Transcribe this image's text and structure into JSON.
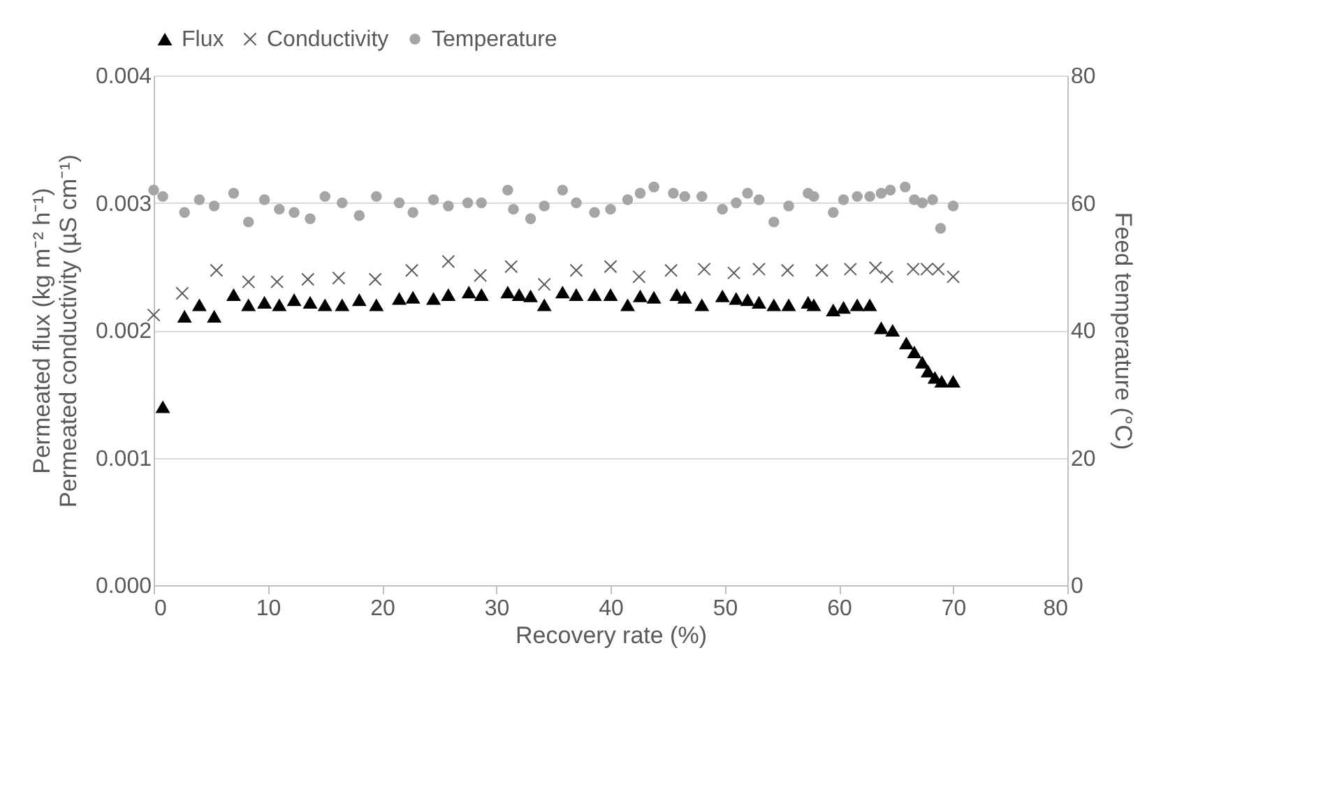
{
  "chart_data": {
    "type": "scatter",
    "xlabel": "Recovery rate (%)",
    "ylabel": "Permeated flux (kg m⁻² h⁻¹)\nPermeated conductivity (µS cm⁻¹)",
    "y2label": "Feed temperature (°C)",
    "xlim": [
      0,
      80
    ],
    "xticks": [
      0,
      10,
      20,
      30,
      40,
      50,
      60,
      70,
      80
    ],
    "ylim": [
      0,
      0.004
    ],
    "yticks": [
      {
        "value": 0,
        "label": "0.000"
      },
      {
        "value": 0.001,
        "label": "0.001"
      },
      {
        "value": 0.002,
        "label": "0.002"
      },
      {
        "value": 0.003,
        "label": "0.003"
      },
      {
        "value": 0.004,
        "label": "0.004"
      }
    ],
    "y2lim": [
      0,
      80
    ],
    "y2ticks": [
      0,
      20,
      40,
      60,
      80
    ],
    "grid": "y",
    "legend": "top",
    "series": [
      {
        "name": "Flux",
        "color": "#000000",
        "marker": "triangle",
        "x": [
          0.8,
          2.7,
          4,
          5.3,
          7,
          8.3,
          9.7,
          11,
          12.3,
          13.7,
          15,
          16.5,
          18,
          19.5,
          21.5,
          22.7,
          24.5,
          25.8,
          27.6,
          28.7,
          31,
          32,
          33,
          34.2,
          35.8,
          37,
          38.6,
          40,
          41.5,
          42.6,
          43.8,
          45.8,
          46.5,
          48,
          49.8,
          51,
          52,
          53,
          54.3,
          55.6,
          57.3,
          57.8,
          59.5,
          60.4,
          61.6,
          62.7,
          63.7,
          64.7,
          65.9,
          66.6,
          67.3,
          67.8,
          68.4,
          69,
          70
        ],
        "values": [
          0.0014,
          0.00211,
          0.0022,
          0.00211,
          0.00228,
          0.0022,
          0.00222,
          0.0022,
          0.00224,
          0.00222,
          0.0022,
          0.0022,
          0.00224,
          0.0022,
          0.00225,
          0.00226,
          0.00225,
          0.00228,
          0.0023,
          0.00228,
          0.0023,
          0.00228,
          0.00227,
          0.0022,
          0.0023,
          0.00228,
          0.00228,
          0.00228,
          0.0022,
          0.00227,
          0.00226,
          0.00228,
          0.00226,
          0.0022,
          0.00227,
          0.00225,
          0.00224,
          0.00222,
          0.0022,
          0.0022,
          0.00222,
          0.0022,
          0.00216,
          0.00218,
          0.0022,
          0.0022,
          0.00202,
          0.002,
          0.0019,
          0.00183,
          0.00175,
          0.00168,
          0.00163,
          0.0016,
          0.0016
        ]
      },
      {
        "name": "Conductivity",
        "color": "#595959",
        "marker": "cross",
        "x": [
          0,
          2.5,
          5.5,
          8.3,
          10.8,
          13.5,
          16.2,
          19.4,
          22.6,
          25.8,
          28.6,
          31.3,
          34.2,
          37,
          40,
          42.5,
          45.3,
          48.2,
          50.8,
          53,
          55.5,
          58.5,
          61,
          63.2,
          64.2,
          66.5,
          67.7,
          68.7,
          70
        ],
        "values": [
          0.00212,
          0.00229,
          0.00247,
          0.00238,
          0.00238,
          0.0024,
          0.00241,
          0.0024,
          0.00247,
          0.00254,
          0.00243,
          0.0025,
          0.00236,
          0.00247,
          0.0025,
          0.00242,
          0.00247,
          0.00248,
          0.00245,
          0.00248,
          0.00247,
          0.00247,
          0.00248,
          0.00249,
          0.00242,
          0.00248,
          0.00248,
          0.00248,
          0.00242
        ]
      },
      {
        "name": "Temperature",
        "color": "#a5a5a5",
        "marker": "circle",
        "axis": "y2",
        "x": [
          0,
          0.8,
          2.7,
          4,
          5.3,
          7,
          8.3,
          9.7,
          11,
          12.3,
          13.7,
          15,
          16.5,
          18,
          19.5,
          21.5,
          22.7,
          24.5,
          25.8,
          27.5,
          28.7,
          31,
          31.5,
          33,
          34.2,
          35.8,
          37,
          38.6,
          40,
          41.5,
          42.6,
          43.8,
          45.5,
          46.5,
          48,
          49.8,
          51,
          52,
          53,
          54.3,
          55.6,
          57.3,
          57.8,
          59.5,
          60.4,
          61.6,
          62.7,
          63.7,
          64.5,
          65.8,
          66.6,
          67.3,
          68.2,
          68.9,
          70
        ],
        "values": [
          62,
          61,
          58.5,
          60.5,
          59.5,
          61.5,
          57,
          60.5,
          59,
          58.5,
          57.5,
          61,
          60,
          58,
          61,
          60,
          58.5,
          60.5,
          59.5,
          60,
          60,
          62,
          59,
          57.5,
          59.5,
          62,
          60,
          58.5,
          59,
          60.5,
          61.5,
          62.5,
          61.5,
          61,
          61,
          59,
          60,
          61.5,
          60.5,
          57,
          59.5,
          61.5,
          61,
          58.5,
          60.5,
          61,
          61,
          61.5,
          62,
          62.5,
          60.5,
          60,
          60.5,
          56,
          59.5
        ]
      }
    ]
  }
}
